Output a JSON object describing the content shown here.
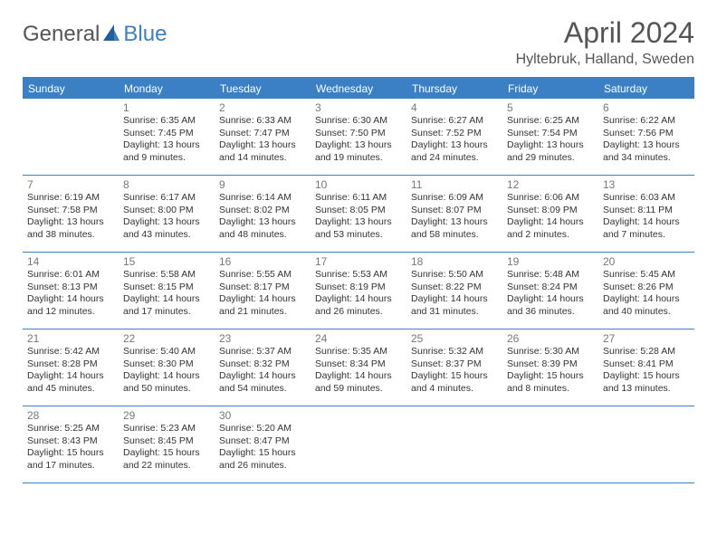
{
  "logo": {
    "text1": "General",
    "text2": "Blue"
  },
  "title": "April 2024",
  "location": "Hyltebruk, Halland, Sweden",
  "colors": {
    "accent": "#3b7fc4",
    "header_text": "#ffffff",
    "day_num": "#777777",
    "body_text": "#333333",
    "title_text": "#555555",
    "border": "#3b7fc4",
    "background": "#ffffff"
  },
  "day_headers": [
    "Sunday",
    "Monday",
    "Tuesday",
    "Wednesday",
    "Thursday",
    "Friday",
    "Saturday"
  ],
  "weeks": [
    [
      {
        "num": "",
        "sunrise": "",
        "sunset": "",
        "daylight": ""
      },
      {
        "num": "1",
        "sunrise": "Sunrise: 6:35 AM",
        "sunset": "Sunset: 7:45 PM",
        "daylight": "Daylight: 13 hours and 9 minutes."
      },
      {
        "num": "2",
        "sunrise": "Sunrise: 6:33 AM",
        "sunset": "Sunset: 7:47 PM",
        "daylight": "Daylight: 13 hours and 14 minutes."
      },
      {
        "num": "3",
        "sunrise": "Sunrise: 6:30 AM",
        "sunset": "Sunset: 7:50 PM",
        "daylight": "Daylight: 13 hours and 19 minutes."
      },
      {
        "num": "4",
        "sunrise": "Sunrise: 6:27 AM",
        "sunset": "Sunset: 7:52 PM",
        "daylight": "Daylight: 13 hours and 24 minutes."
      },
      {
        "num": "5",
        "sunrise": "Sunrise: 6:25 AM",
        "sunset": "Sunset: 7:54 PM",
        "daylight": "Daylight: 13 hours and 29 minutes."
      },
      {
        "num": "6",
        "sunrise": "Sunrise: 6:22 AM",
        "sunset": "Sunset: 7:56 PM",
        "daylight": "Daylight: 13 hours and 34 minutes."
      }
    ],
    [
      {
        "num": "7",
        "sunrise": "Sunrise: 6:19 AM",
        "sunset": "Sunset: 7:58 PM",
        "daylight": "Daylight: 13 hours and 38 minutes."
      },
      {
        "num": "8",
        "sunrise": "Sunrise: 6:17 AM",
        "sunset": "Sunset: 8:00 PM",
        "daylight": "Daylight: 13 hours and 43 minutes."
      },
      {
        "num": "9",
        "sunrise": "Sunrise: 6:14 AM",
        "sunset": "Sunset: 8:02 PM",
        "daylight": "Daylight: 13 hours and 48 minutes."
      },
      {
        "num": "10",
        "sunrise": "Sunrise: 6:11 AM",
        "sunset": "Sunset: 8:05 PM",
        "daylight": "Daylight: 13 hours and 53 minutes."
      },
      {
        "num": "11",
        "sunrise": "Sunrise: 6:09 AM",
        "sunset": "Sunset: 8:07 PM",
        "daylight": "Daylight: 13 hours and 58 minutes."
      },
      {
        "num": "12",
        "sunrise": "Sunrise: 6:06 AM",
        "sunset": "Sunset: 8:09 PM",
        "daylight": "Daylight: 14 hours and 2 minutes."
      },
      {
        "num": "13",
        "sunrise": "Sunrise: 6:03 AM",
        "sunset": "Sunset: 8:11 PM",
        "daylight": "Daylight: 14 hours and 7 minutes."
      }
    ],
    [
      {
        "num": "14",
        "sunrise": "Sunrise: 6:01 AM",
        "sunset": "Sunset: 8:13 PM",
        "daylight": "Daylight: 14 hours and 12 minutes."
      },
      {
        "num": "15",
        "sunrise": "Sunrise: 5:58 AM",
        "sunset": "Sunset: 8:15 PM",
        "daylight": "Daylight: 14 hours and 17 minutes."
      },
      {
        "num": "16",
        "sunrise": "Sunrise: 5:55 AM",
        "sunset": "Sunset: 8:17 PM",
        "daylight": "Daylight: 14 hours and 21 minutes."
      },
      {
        "num": "17",
        "sunrise": "Sunrise: 5:53 AM",
        "sunset": "Sunset: 8:19 PM",
        "daylight": "Daylight: 14 hours and 26 minutes."
      },
      {
        "num": "18",
        "sunrise": "Sunrise: 5:50 AM",
        "sunset": "Sunset: 8:22 PM",
        "daylight": "Daylight: 14 hours and 31 minutes."
      },
      {
        "num": "19",
        "sunrise": "Sunrise: 5:48 AM",
        "sunset": "Sunset: 8:24 PM",
        "daylight": "Daylight: 14 hours and 36 minutes."
      },
      {
        "num": "20",
        "sunrise": "Sunrise: 5:45 AM",
        "sunset": "Sunset: 8:26 PM",
        "daylight": "Daylight: 14 hours and 40 minutes."
      }
    ],
    [
      {
        "num": "21",
        "sunrise": "Sunrise: 5:42 AM",
        "sunset": "Sunset: 8:28 PM",
        "daylight": "Daylight: 14 hours and 45 minutes."
      },
      {
        "num": "22",
        "sunrise": "Sunrise: 5:40 AM",
        "sunset": "Sunset: 8:30 PM",
        "daylight": "Daylight: 14 hours and 50 minutes."
      },
      {
        "num": "23",
        "sunrise": "Sunrise: 5:37 AM",
        "sunset": "Sunset: 8:32 PM",
        "daylight": "Daylight: 14 hours and 54 minutes."
      },
      {
        "num": "24",
        "sunrise": "Sunrise: 5:35 AM",
        "sunset": "Sunset: 8:34 PM",
        "daylight": "Daylight: 14 hours and 59 minutes."
      },
      {
        "num": "25",
        "sunrise": "Sunrise: 5:32 AM",
        "sunset": "Sunset: 8:37 PM",
        "daylight": "Daylight: 15 hours and 4 minutes."
      },
      {
        "num": "26",
        "sunrise": "Sunrise: 5:30 AM",
        "sunset": "Sunset: 8:39 PM",
        "daylight": "Daylight: 15 hours and 8 minutes."
      },
      {
        "num": "27",
        "sunrise": "Sunrise: 5:28 AM",
        "sunset": "Sunset: 8:41 PM",
        "daylight": "Daylight: 15 hours and 13 minutes."
      }
    ],
    [
      {
        "num": "28",
        "sunrise": "Sunrise: 5:25 AM",
        "sunset": "Sunset: 8:43 PM",
        "daylight": "Daylight: 15 hours and 17 minutes."
      },
      {
        "num": "29",
        "sunrise": "Sunrise: 5:23 AM",
        "sunset": "Sunset: 8:45 PM",
        "daylight": "Daylight: 15 hours and 22 minutes."
      },
      {
        "num": "30",
        "sunrise": "Sunrise: 5:20 AM",
        "sunset": "Sunset: 8:47 PM",
        "daylight": "Daylight: 15 hours and 26 minutes."
      },
      {
        "num": "",
        "sunrise": "",
        "sunset": "",
        "daylight": ""
      },
      {
        "num": "",
        "sunrise": "",
        "sunset": "",
        "daylight": ""
      },
      {
        "num": "",
        "sunrise": "",
        "sunset": "",
        "daylight": ""
      },
      {
        "num": "",
        "sunrise": "",
        "sunset": "",
        "daylight": ""
      }
    ]
  ]
}
